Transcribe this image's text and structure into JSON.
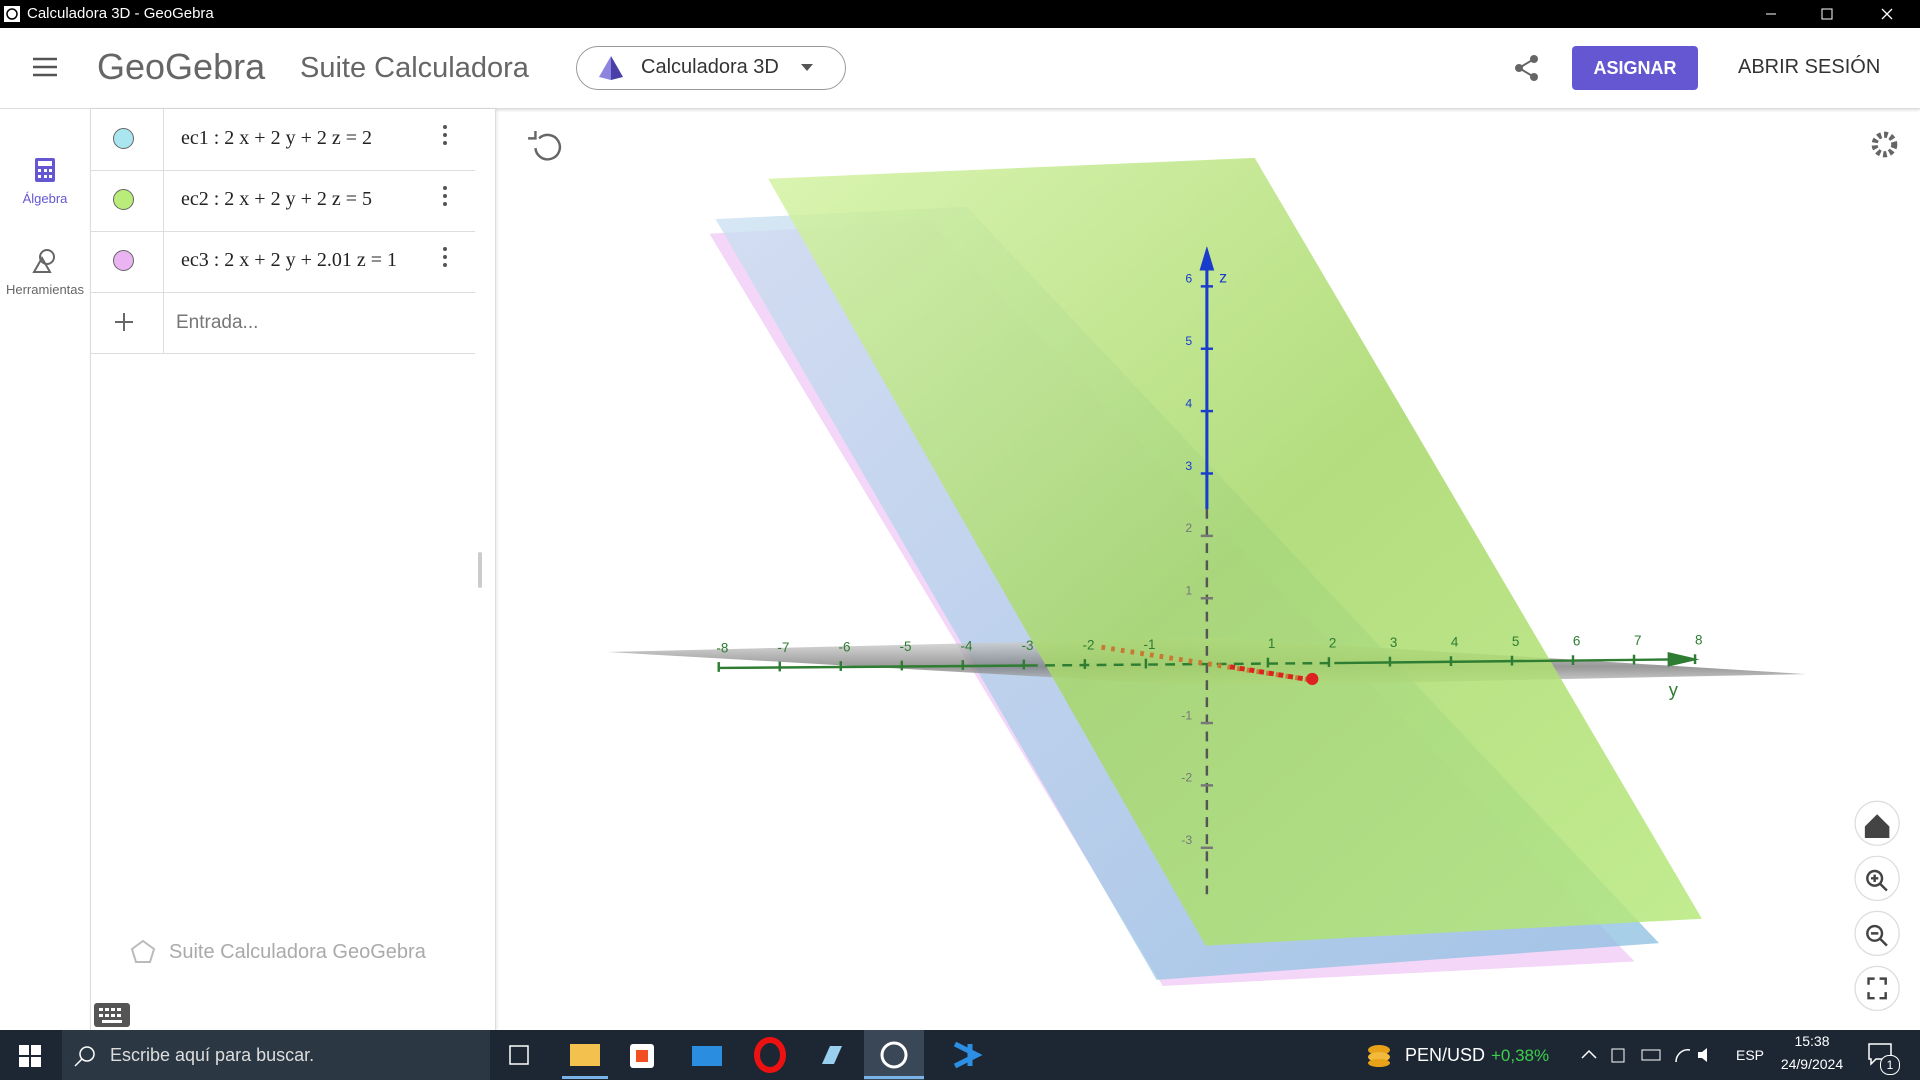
{
  "window": {
    "title": "Calculadora 3D - GeoGebra"
  },
  "header": {
    "logo": "GeoGebra",
    "app_name": "Suite Calculadora",
    "app_selector": "Calculadora 3D",
    "assign_button": "ASIGNAR",
    "login_button": "ABRIR SESIÓN"
  },
  "sidebar": {
    "items": [
      "Álgebra",
      "Herramientas"
    ]
  },
  "algebra": {
    "equations": [
      {
        "text": "ec1 :  2 x + 2 y + 2 z  =  2",
        "color": "#a9e6ef"
      },
      {
        "text": "ec2 :  2 x + 2 y + 2 z  =  5",
        "color": "#b9ec78"
      },
      {
        "text": "ec3 :  2 x + 2 y + 2.01 z  =  1",
        "color": "#eab4f2"
      }
    ],
    "input_placeholder": "Entrada...",
    "footer": "Suite Calculadora GeoGebra"
  },
  "graphics": {
    "z_label": "z",
    "y_label": "y",
    "z_ticks": [
      -3,
      -2,
      -1,
      1,
      2,
      3,
      4,
      5,
      6
    ],
    "y_ticks": [
      -8,
      -7,
      -6,
      -5,
      -4,
      -3,
      -2,
      -1,
      1,
      2,
      3,
      4,
      5,
      6,
      7,
      8
    ]
  },
  "taskbar": {
    "search": "Escribe aquí para buscar.",
    "ticker": "PEN/USD",
    "change": "+0,38%",
    "language": "ESP",
    "time": "15:38",
    "date": "24/9/2024",
    "notifications": "1"
  }
}
